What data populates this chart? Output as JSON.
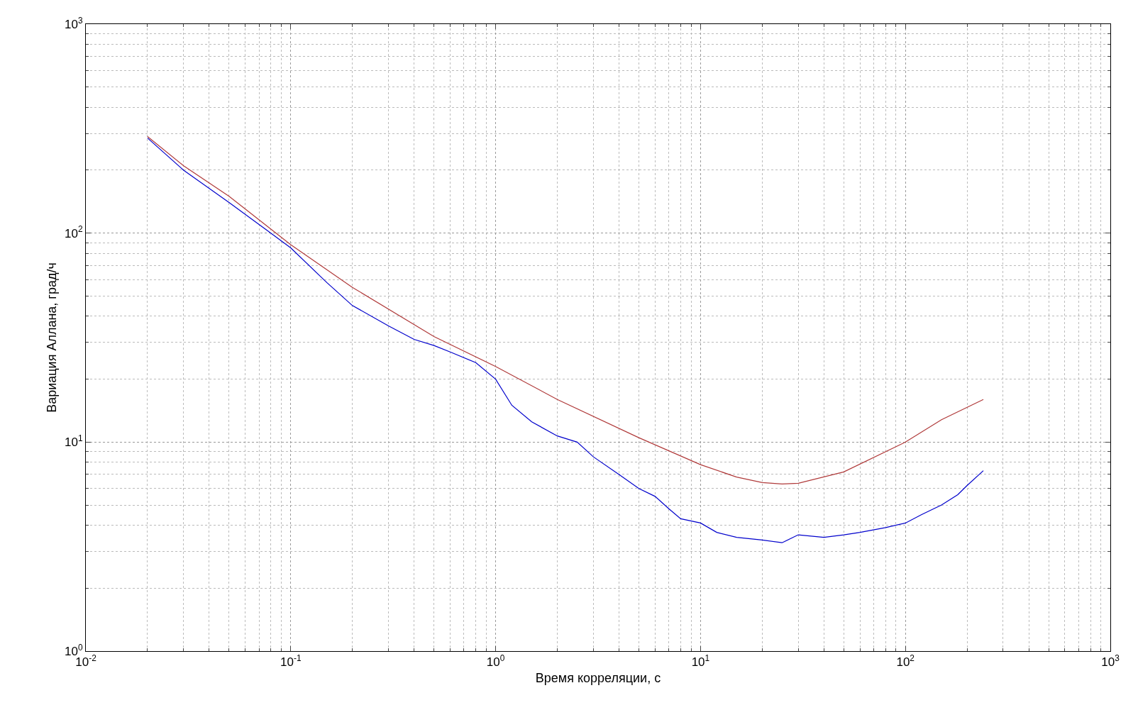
{
  "chart_data": {
    "type": "line",
    "xlabel": "Время корреляции, с",
    "ylabel": "Вариация Аллана, град/ч",
    "log": "xy",
    "grid": true,
    "marker": "none",
    "line_style": "solid",
    "xlim": [
      0.01,
      1000
    ],
    "ylim": [
      1,
      1000
    ],
    "xticks": [
      {
        "value": 0.01,
        "label": "10$^{-2}$"
      },
      {
        "value": 0.1,
        "label": "10$^{-1}$"
      },
      {
        "value": 1,
        "label": "10$^{0}$"
      },
      {
        "value": 10,
        "label": "10$^{1}$"
      },
      {
        "value": 100,
        "label": "10$^{2}$"
      },
      {
        "value": 1000,
        "label": "10$^{3}$"
      }
    ],
    "yticks": [
      {
        "value": 1,
        "label": "10$^{0}$"
      },
      {
        "value": 10,
        "label": "10$^{1}$"
      },
      {
        "value": 100,
        "label": "10$^{2}$"
      },
      {
        "value": 1000,
        "label": "10$^{3}$"
      }
    ],
    "series": [
      {
        "color": "#0000cc",
        "x": [
          0.02,
          0.03,
          0.05,
          0.08,
          0.1,
          0.15,
          0.2,
          0.3,
          0.4,
          0.5,
          0.6,
          0.8,
          1,
          1.2,
          1.5,
          2,
          2.5,
          3,
          4,
          5,
          6,
          7,
          8,
          10,
          12,
          15,
          20,
          25,
          30,
          40,
          50,
          60,
          80,
          100,
          120,
          150,
          180,
          200,
          240
        ],
        "values": [
          285,
          200,
          140,
          100,
          85,
          58,
          45,
          36,
          31,
          29,
          27,
          24,
          20,
          15,
          12.5,
          10.7,
          10,
          8.5,
          7,
          6,
          5.5,
          4.8,
          4.3,
          4.1,
          3.7,
          3.5,
          3.4,
          3.3,
          3.6,
          3.5,
          3.6,
          3.7,
          3.9,
          4.1,
          4.5,
          5,
          5.6,
          6.2,
          7.3
        ]
      },
      {
        "color": "#b03a3a",
        "x": [
          0.02,
          0.03,
          0.05,
          0.1,
          0.2,
          0.5,
          1,
          2,
          5,
          10,
          15,
          20,
          25,
          30,
          50,
          100,
          150,
          240
        ],
        "values": [
          290,
          210,
          150,
          88,
          55,
          32,
          23,
          16,
          10.5,
          7.8,
          6.8,
          6.4,
          6.3,
          6.35,
          7.2,
          10,
          12.8,
          16
        ]
      }
    ]
  }
}
